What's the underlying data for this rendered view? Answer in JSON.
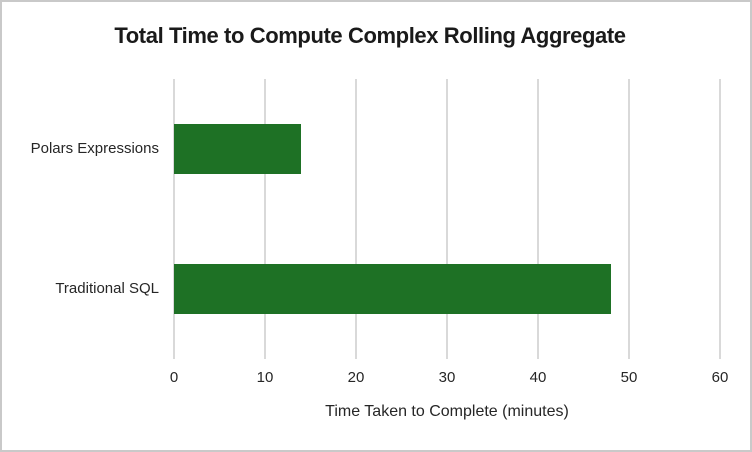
{
  "chart_data": {
    "type": "bar",
    "orientation": "horizontal",
    "title": "Total Time to Compute Complex Rolling Aggregate",
    "xlabel": "Time Taken to Complete (minutes)",
    "ylabel": "",
    "categories": [
      "Polars Expressions",
      "Traditional SQL"
    ],
    "values": [
      14,
      48
    ],
    "xlim": [
      0,
      60
    ],
    "xticks": [
      0,
      10,
      20,
      30,
      40,
      50,
      60
    ],
    "grid": true,
    "legend": false
  },
  "colors": {
    "bar": "#1E7125",
    "gridline": "#D9D9D9",
    "frame_border": "#C9C9C9",
    "text": "#262626",
    "title_text": "#1A1A1A",
    "background": "#FFFFFF"
  }
}
